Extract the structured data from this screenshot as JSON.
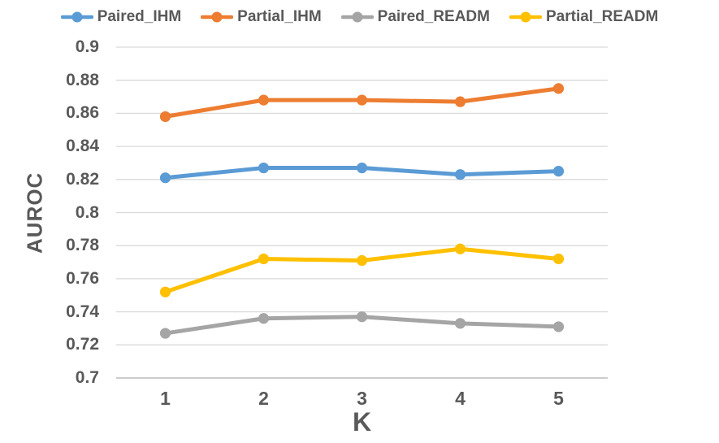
{
  "chart_data": {
    "type": "line",
    "title": "",
    "xlabel": "K",
    "ylabel": "AUROC",
    "x": [
      1,
      2,
      3,
      4,
      5
    ],
    "xtick_labels": [
      "1",
      "2",
      "3",
      "4",
      "5"
    ],
    "yticks": [
      {
        "label": "0.9",
        "value": 0.9
      },
      {
        "label": "0.88",
        "value": 0.88
      },
      {
        "label": "0.86",
        "value": 0.86
      },
      {
        "label": "0.84",
        "value": 0.84
      },
      {
        "label": "0.82",
        "value": 0.82
      },
      {
        "label": "0.8",
        "value": 0.8
      },
      {
        "label": "0.78",
        "value": 0.78
      },
      {
        "label": "0.76",
        "value": 0.76
      },
      {
        "label": "0.74",
        "value": 0.74
      },
      {
        "label": "0.72",
        "value": 0.72
      },
      {
        "label": "0.7",
        "value": 0.7
      }
    ],
    "ylim": [
      0.7,
      0.9
    ],
    "grid": "horizontal",
    "legend_position": "top",
    "marker": "circle",
    "series": [
      {
        "name": "Paired_IHM",
        "color": "#5B9BD5",
        "values": [
          0.821,
          0.827,
          0.827,
          0.823,
          0.825
        ]
      },
      {
        "name": "Partial_IHM",
        "color": "#ED7D31",
        "values": [
          0.858,
          0.868,
          0.868,
          0.867,
          0.875
        ]
      },
      {
        "name": "Paired_READM",
        "color": "#A5A5A5",
        "values": [
          0.727,
          0.736,
          0.737,
          0.733,
          0.731
        ]
      },
      {
        "name": "Partial_READM",
        "color": "#FFC000",
        "values": [
          0.752,
          0.772,
          0.771,
          0.778,
          0.772
        ]
      }
    ],
    "colors": {
      "text": "#595959",
      "gridline": "#D9D9D9",
      "axis_line": "#C6C6C6",
      "background": "#FFFFFF"
    }
  }
}
